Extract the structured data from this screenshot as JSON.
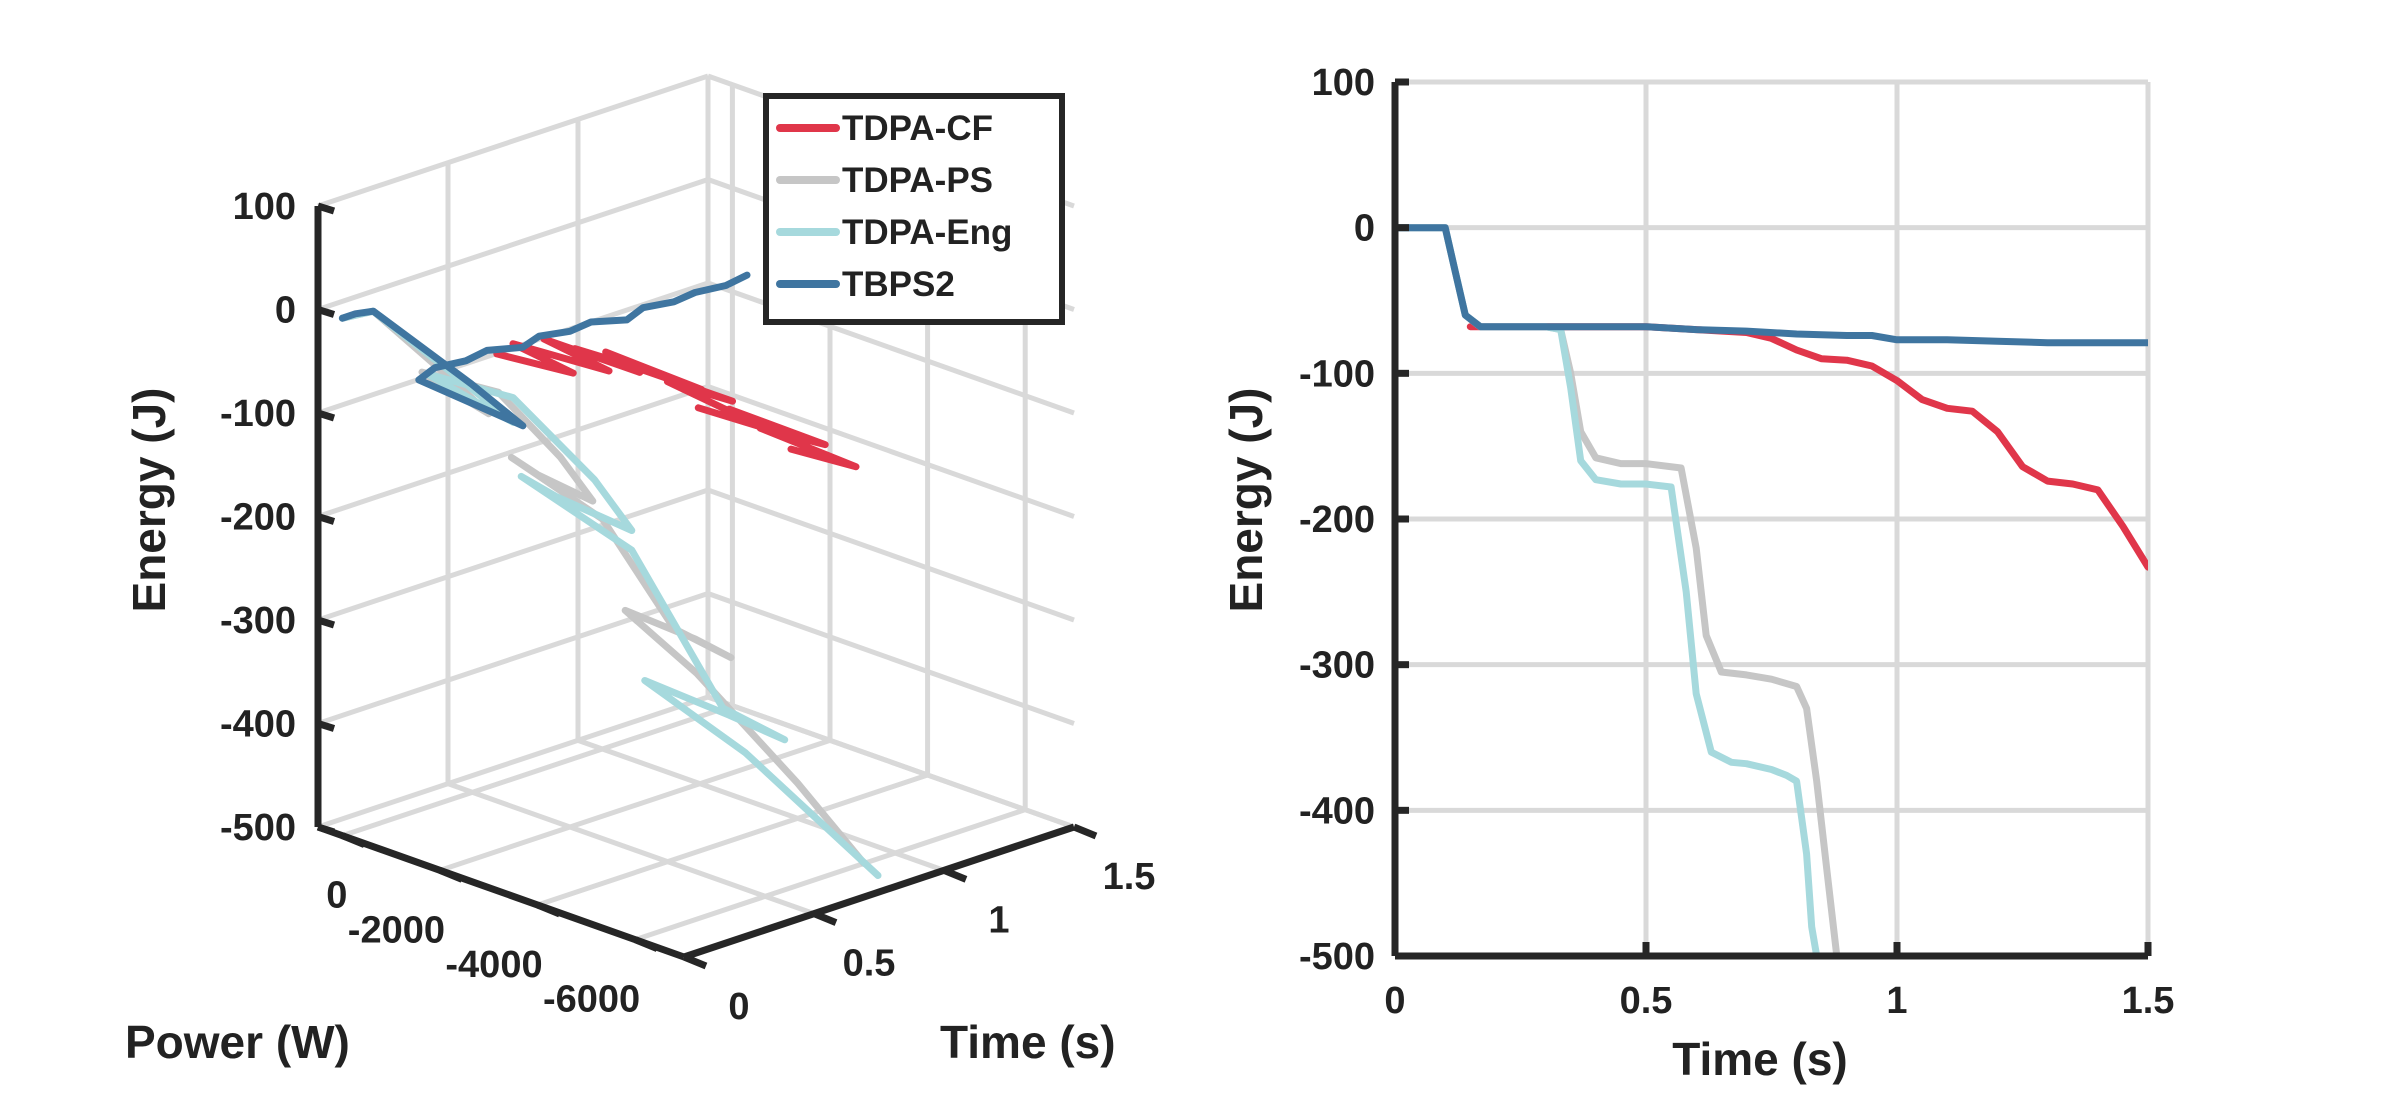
{
  "chart_data": [
    {
      "type": "line3d",
      "xlabel": "Power (W)",
      "ylabel": "Time (s)",
      "zlabel": "Energy (J)",
      "xlim": [
        -7000,
        500
      ],
      "ylim": [
        0,
        1.5
      ],
      "zlim": [
        -500,
        100
      ],
      "xticks": [
        "0",
        "-2000",
        "-4000",
        "-6000"
      ],
      "yticks": [
        "0",
        "0.5",
        "1",
        "1.5"
      ],
      "zticks": [
        "100",
        "0",
        "-100",
        "-200",
        "-300",
        "-400",
        "-500"
      ],
      "grid": true,
      "legend": {
        "placement": "top-right",
        "entries": [
          "TDPA-CF",
          "TDPA-PS",
          "TDPA-Eng",
          "TBPS2"
        ]
      },
      "series": [
        {
          "name": "TDPA-CF",
          "color": "#e0364a",
          "t": [
            0.5,
            0.55,
            0.6,
            0.65,
            0.7,
            0.75,
            0.8,
            0.85,
            0.9,
            0.95,
            1.0,
            1.05,
            1.1,
            1.15,
            1.2,
            1.25,
            1.3,
            1.35,
            1.4,
            1.45,
            1.5
          ],
          "p": [
            -500,
            -1800,
            -300,
            -2000,
            -400,
            -2100,
            -500,
            -2200,
            -600,
            -2300,
            -700,
            -2400,
            -800,
            -2500,
            -900,
            -2600,
            -1000,
            -2700,
            -1100,
            -2800,
            -1200
          ],
          "e": [
            -68,
            -69,
            -70,
            -72,
            -72,
            -80,
            -88,
            -92,
            -98,
            -110,
            -120,
            -128,
            -140,
            -160,
            -172,
            -176,
            -180,
            -190,
            -205,
            -218,
            -232
          ]
        },
        {
          "name": "TDPA-PS",
          "color": "#c6c6c6",
          "t": [
            0.0,
            0.1,
            0.12,
            0.15,
            0.2,
            0.25,
            0.3,
            0.35,
            0.4,
            0.45,
            0.5,
            0.55,
            0.6,
            0.65,
            0.7,
            0.75,
            0.8,
            0.85,
            0.88
          ],
          "p": [
            0,
            -100,
            -1500,
            -2200,
            -1200,
            -300,
            -1600,
            -2600,
            -3000,
            -1600,
            -800,
            -2400,
            -3600,
            -4500,
            -3500,
            -1800,
            -3000,
            -4800,
            -6000
          ],
          "e": [
            0,
            0,
            -40,
            -68,
            -68,
            -68,
            -70,
            -120,
            -160,
            -162,
            -163,
            -200,
            -290,
            -307,
            -310,
            -315,
            -360,
            -440,
            -500
          ]
        },
        {
          "name": "TDPA-Eng",
          "color": "#a6d9dd",
          "t": [
            0.0,
            0.1,
            0.12,
            0.15,
            0.2,
            0.25,
            0.3,
            0.35,
            0.4,
            0.45,
            0.5,
            0.55,
            0.6,
            0.65,
            0.7,
            0.75,
            0.8,
            0.84
          ],
          "p": [
            0,
            -100,
            -1800,
            -2700,
            -1500,
            -400,
            -1900,
            -3300,
            -3800,
            -2000,
            -1000,
            -3000,
            -4600,
            -5600,
            -4200,
            -2200,
            -4000,
            -6500
          ],
          "e": [
            0,
            0,
            -40,
            -68,
            -68,
            -68,
            -70,
            -130,
            -175,
            -177,
            -178,
            -220,
            -350,
            -368,
            -372,
            -376,
            -420,
            -500
          ]
        },
        {
          "name": "TBPS2",
          "color": "#3f75a0",
          "t": [
            0.0,
            0.05,
            0.1,
            0.12,
            0.15,
            0.2,
            0.3,
            0.4,
            0.5,
            0.6,
            0.7,
            0.8,
            0.9,
            1.0,
            1.1,
            1.2,
            1.3,
            1.4,
            1.5
          ],
          "p": [
            0,
            0,
            -100,
            -2000,
            -2900,
            -500,
            -300,
            -400,
            -300,
            -500,
            -300,
            -400,
            -300,
            -500,
            -300,
            -400,
            -300,
            -400,
            -300
          ],
          "e": [
            0,
            0,
            0,
            -40,
            -68,
            -68,
            -68,
            -68,
            -68,
            -70,
            -71,
            -73,
            -74,
            -77,
            -77,
            -78,
            -79,
            -79,
            -79
          ]
        }
      ]
    },
    {
      "type": "line",
      "xlabel": "Time (s)",
      "ylabel": "Energy (J)",
      "xlim": [
        0,
        1.5
      ],
      "ylim": [
        -500,
        100
      ],
      "xticks": [
        "0",
        "0.5",
        "1",
        "1.5"
      ],
      "yticks": [
        "100",
        "0",
        "-100",
        "-200",
        "-300",
        "-400",
        "-500"
      ],
      "grid": true,
      "series": [
        {
          "color": "#e0364a",
          "x": [
            0.15,
            0.2,
            0.3,
            0.4,
            0.5,
            0.6,
            0.7,
            0.75,
            0.8,
            0.85,
            0.9,
            0.95,
            1.0,
            1.05,
            1.1,
            1.15,
            1.2,
            1.25,
            1.3,
            1.35,
            1.4,
            1.45,
            1.5
          ],
          "y": [
            -68,
            -68,
            -68,
            -68,
            -68,
            -70,
            -72,
            -76,
            -84,
            -90,
            -91,
            -95,
            -105,
            -118,
            -124,
            -126,
            -140,
            -164,
            -174,
            -176,
            -180,
            -205,
            -233
          ]
        },
        {
          "color": "#c6c6c6",
          "x": [
            0.0,
            0.1,
            0.12,
            0.14,
            0.17,
            0.2,
            0.3,
            0.33,
            0.35,
            0.37,
            0.4,
            0.45,
            0.5,
            0.57,
            0.6,
            0.62,
            0.65,
            0.7,
            0.75,
            0.8,
            0.82,
            0.84,
            0.86,
            0.88
          ],
          "y": [
            0,
            0,
            -30,
            -60,
            -68,
            -68,
            -68,
            -70,
            -100,
            -140,
            -158,
            -162,
            -162,
            -165,
            -220,
            -280,
            -305,
            -307,
            -310,
            -315,
            -330,
            -380,
            -440,
            -500
          ]
        },
        {
          "color": "#a6d9dd",
          "x": [
            0.0,
            0.1,
            0.12,
            0.14,
            0.17,
            0.2,
            0.3,
            0.33,
            0.35,
            0.37,
            0.4,
            0.45,
            0.5,
            0.55,
            0.58,
            0.6,
            0.63,
            0.67,
            0.7,
            0.75,
            0.78,
            0.8,
            0.82,
            0.83,
            0.84
          ],
          "y": [
            0,
            0,
            -30,
            -60,
            -68,
            -68,
            -68,
            -70,
            -110,
            -160,
            -173,
            -176,
            -176,
            -178,
            -250,
            -320,
            -360,
            -367,
            -368,
            -372,
            -376,
            -380,
            -430,
            -480,
            -500
          ]
        },
        {
          "color": "#3f75a0",
          "x": [
            0.0,
            0.1,
            0.12,
            0.14,
            0.17,
            0.2,
            0.3,
            0.4,
            0.5,
            0.6,
            0.7,
            0.8,
            0.9,
            0.95,
            1.0,
            1.1,
            1.2,
            1.3,
            1.4,
            1.5
          ],
          "y": [
            0,
            0,
            -30,
            -60,
            -68,
            -68,
            -68,
            -68,
            -68,
            -70,
            -71,
            -73,
            -74,
            -74,
            -77,
            -77,
            -78,
            -79,
            -79,
            -79
          ]
        }
      ]
    }
  ]
}
